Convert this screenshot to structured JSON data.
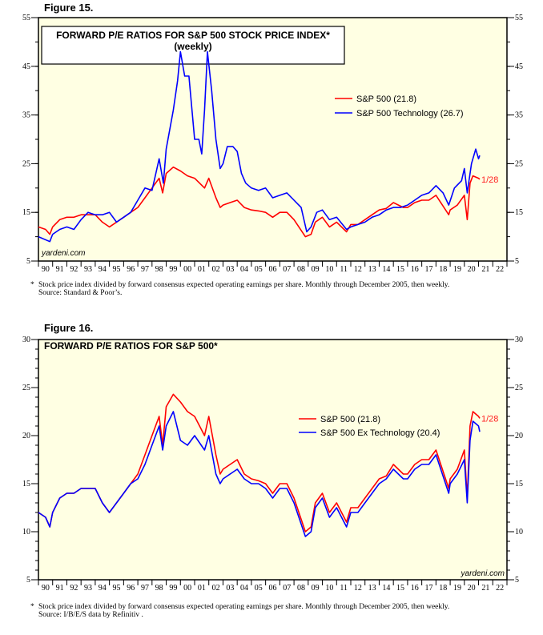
{
  "chart_data": [
    {
      "type": "line",
      "figure_label": "Figure 15.",
      "title": "FORWARD P/E RATIOS FOR S&P 500 STOCK PRICE INDEX*",
      "subtitle": "(weekly)",
      "ylim": [
        5,
        55
      ],
      "y_ticks": [
        5,
        15,
        25,
        35,
        45,
        55
      ],
      "y_minor_step": 5,
      "x_range": [
        1990,
        2023
      ],
      "x_tick_labels": [
        "90",
        "91",
        "92",
        "93",
        "94",
        "95",
        "96",
        "97",
        "98",
        "99",
        "00",
        "01",
        "02",
        "03",
        "04",
        "05",
        "06",
        "07",
        "08",
        "09",
        "10",
        "11",
        "12",
        "13",
        "14",
        "15",
        "16",
        "17",
        "18",
        "19",
        "20",
        "21",
        "22"
      ],
      "legend_placement": "top-right",
      "end_label": "1/28",
      "brand": "yardeni.com",
      "footnote": "Stock price index divided by forward consensus expected operating earnings per share. Monthly through December 2005, then weekly.",
      "source": "Source: Standard & Poor’s.",
      "series": [
        {
          "name": "S&P 500 (21.8)",
          "color": "#ff0000",
          "x": [
            1990.0,
            1990.5,
            1990.8,
            1991.0,
            1991.5,
            1992.0,
            1992.5,
            1993.0,
            1993.5,
            1994.0,
            1994.5,
            1995.0,
            1995.5,
            1996.0,
            1996.5,
            1997.0,
            1997.5,
            1998.0,
            1998.5,
            1998.75,
            1999.0,
            1999.5,
            2000.0,
            2000.5,
            2001.0,
            2001.7,
            2002.0,
            2002.5,
            2002.8,
            2003.0,
            2003.5,
            2004.0,
            2004.5,
            2005.0,
            2005.5,
            2006.0,
            2006.5,
            2007.0,
            2007.5,
            2008.0,
            2008.8,
            2009.2,
            2009.5,
            2010.0,
            2010.5,
            2011.0,
            2011.7,
            2012.0,
            2012.5,
            2013.0,
            2013.5,
            2014.0,
            2014.5,
            2015.0,
            2015.7,
            2016.0,
            2016.5,
            2017.0,
            2017.5,
            2018.0,
            2018.9,
            2019.0,
            2019.5,
            2020.0,
            2020.2,
            2020.4,
            2020.6,
            2021.0,
            2021.08
          ],
          "y": [
            12,
            11.5,
            10.5,
            12,
            13.5,
            14,
            14,
            14.5,
            14.5,
            14.5,
            13,
            12,
            13,
            14,
            15,
            16,
            18,
            20,
            22,
            19,
            23,
            24.3,
            23.5,
            22.5,
            22,
            20,
            22,
            18,
            16,
            16.5,
            17,
            17.5,
            16,
            15.5,
            15.3,
            15,
            14,
            15,
            15,
            13.5,
            10,
            10.5,
            13,
            14,
            12,
            13,
            11,
            12.5,
            12.5,
            13.5,
            14.5,
            15.5,
            15.8,
            17,
            16,
            16,
            17,
            17.5,
            17.5,
            18.5,
            14.5,
            15.5,
            16.5,
            18.5,
            13.5,
            21,
            22.5,
            22,
            21.8
          ]
        },
        {
          "name": "S&P 500 Technology (26.7)",
          "color": "#0000ff",
          "x": [
            1990.0,
            1990.8,
            1991.0,
            1991.5,
            1992.0,
            1992.5,
            1993.0,
            1993.5,
            1994.0,
            1994.5,
            1995.0,
            1995.5,
            1996.0,
            1996.5,
            1997.0,
            1997.5,
            1998.0,
            1998.5,
            1998.8,
            1999.0,
            1999.5,
            1999.8,
            2000.0,
            2000.3,
            2000.6,
            2001.0,
            2001.3,
            2001.5,
            2001.7,
            2001.9,
            2002.2,
            2002.5,
            2002.8,
            2003.0,
            2003.3,
            2003.7,
            2004.0,
            2004.3,
            2004.6,
            2005.0,
            2005.5,
            2006.0,
            2006.5,
            2007.0,
            2007.5,
            2008.0,
            2008.5,
            2008.9,
            2009.2,
            2009.6,
            2010.0,
            2010.5,
            2011.0,
            2011.7,
            2012.0,
            2012.5,
            2013.0,
            2013.5,
            2014.0,
            2014.5,
            2015.0,
            2015.5,
            2016.0,
            2016.5,
            2017.0,
            2017.5,
            2018.0,
            2018.5,
            2018.9,
            2019.3,
            2019.8,
            2020.0,
            2020.2,
            2020.5,
            2020.8,
            2021.0,
            2021.08
          ],
          "y": [
            10,
            9,
            10.5,
            11.5,
            12,
            11.5,
            13.5,
            15,
            14.5,
            14.5,
            15,
            13,
            14,
            15,
            17.5,
            20,
            19.5,
            26,
            21,
            28,
            36,
            42,
            48,
            43,
            43,
            30,
            30,
            27,
            36,
            48,
            40,
            30,
            24,
            25,
            28.5,
            28.5,
            27.5,
            23,
            21,
            20,
            19.5,
            20,
            18,
            18.5,
            19,
            17.5,
            16,
            11,
            12,
            15,
            15.5,
            13.5,
            14,
            11.5,
            12,
            12.5,
            13,
            14,
            14.5,
            15.5,
            16,
            16,
            16.5,
            17.5,
            18.5,
            19,
            20.5,
            19,
            16.5,
            20,
            21.5,
            24,
            19,
            25,
            28,
            26,
            26.7
          ]
        }
      ]
    },
    {
      "type": "line",
      "figure_label": "Figure 16.",
      "title": "FORWARD P/E RATIOS FOR S&P 500*",
      "ylim": [
        5,
        30
      ],
      "y_ticks": [
        5,
        10,
        15,
        20,
        25,
        30
      ],
      "y_minor_step": 1,
      "x_range": [
        1990,
        2023
      ],
      "x_tick_labels": [
        "90",
        "91",
        "92",
        "93",
        "94",
        "95",
        "96",
        "97",
        "98",
        "99",
        "00",
        "01",
        "02",
        "03",
        "04",
        "05",
        "06",
        "07",
        "08",
        "09",
        "10",
        "11",
        "12",
        "13",
        "14",
        "15",
        "16",
        "17",
        "18",
        "19",
        "20",
        "21",
        "22"
      ],
      "legend_placement": "center-right",
      "end_label": "1/28",
      "brand": "yardeni.com",
      "footnote": "Stock price index divided by forward consensus expected operating earnings per share. Monthly through December 2005, then weekly.",
      "source": "Source: I/B/E/S data by Refinitiv .",
      "series": [
        {
          "name": "S&P 500 (21.8)",
          "color": "#ff0000",
          "x": [
            1990.0,
            1990.5,
            1990.8,
            1991.0,
            1991.5,
            1992.0,
            1992.5,
            1993.0,
            1993.5,
            1994.0,
            1994.5,
            1995.0,
            1995.5,
            1996.0,
            1996.5,
            1997.0,
            1997.5,
            1998.0,
            1998.5,
            1998.75,
            1999.0,
            1999.5,
            2000.0,
            2000.5,
            2001.0,
            2001.7,
            2002.0,
            2002.5,
            2002.8,
            2003.0,
            2003.5,
            2004.0,
            2004.5,
            2005.0,
            2005.5,
            2006.0,
            2006.5,
            2007.0,
            2007.5,
            2008.0,
            2008.8,
            2009.2,
            2009.5,
            2010.0,
            2010.5,
            2011.0,
            2011.7,
            2012.0,
            2012.5,
            2013.0,
            2013.5,
            2014.0,
            2014.5,
            2015.0,
            2015.7,
            2016.0,
            2016.5,
            2017.0,
            2017.5,
            2018.0,
            2018.9,
            2019.0,
            2019.5,
            2020.0,
            2020.2,
            2020.4,
            2020.6,
            2021.0,
            2021.08
          ],
          "y": [
            12,
            11.5,
            10.5,
            12,
            13.5,
            14,
            14,
            14.5,
            14.5,
            14.5,
            13,
            12,
            13,
            14,
            15,
            16,
            18,
            20,
            22,
            19,
            23,
            24.3,
            23.5,
            22.5,
            22,
            20,
            22,
            18,
            16,
            16.5,
            17,
            17.5,
            16,
            15.5,
            15.3,
            15,
            14,
            15,
            15,
            13.5,
            10,
            10.5,
            13,
            14,
            12,
            13,
            11,
            12.5,
            12.5,
            13.5,
            14.5,
            15.5,
            15.8,
            17,
            16,
            16,
            17,
            17.5,
            17.5,
            18.5,
            14.5,
            15.5,
            16.5,
            18.5,
            13.5,
            21,
            22.5,
            22,
            21.8
          ]
        },
        {
          "name": "S&P 500 Ex Technology (20.4)",
          "color": "#0000ff",
          "x": [
            1990.0,
            1990.5,
            1990.8,
            1991.0,
            1991.5,
            1992.0,
            1992.5,
            1993.0,
            1993.5,
            1994.0,
            1994.5,
            1995.0,
            1995.5,
            1996.0,
            1996.5,
            1997.0,
            1997.5,
            1998.0,
            1998.5,
            1998.75,
            1999.0,
            1999.5,
            2000.0,
            2000.5,
            2001.0,
            2001.7,
            2002.0,
            2002.5,
            2002.8,
            2003.0,
            2003.5,
            2004.0,
            2004.5,
            2005.0,
            2005.5,
            2006.0,
            2006.5,
            2007.0,
            2007.5,
            2008.0,
            2008.8,
            2009.2,
            2009.5,
            2010.0,
            2010.5,
            2011.0,
            2011.7,
            2012.0,
            2012.5,
            2013.0,
            2013.5,
            2014.0,
            2014.5,
            2015.0,
            2015.7,
            2016.0,
            2016.5,
            2017.0,
            2017.5,
            2018.0,
            2018.9,
            2019.0,
            2019.5,
            2020.0,
            2020.2,
            2020.4,
            2020.6,
            2021.0,
            2021.08
          ],
          "y": [
            12,
            11.5,
            10.5,
            12,
            13.5,
            14,
            14,
            14.5,
            14.5,
            14.5,
            13,
            12,
            13,
            14,
            15,
            15.5,
            17,
            19,
            21,
            18.5,
            21,
            22.5,
            19.5,
            19,
            20,
            18.5,
            20,
            16,
            15,
            15.5,
            16,
            16.5,
            15.5,
            15,
            15,
            14.5,
            13.5,
            14.5,
            14.5,
            13,
            9.5,
            10,
            12.5,
            13.5,
            11.5,
            12.5,
            10.5,
            12,
            12,
            13,
            14,
            15,
            15.5,
            16.5,
            15.5,
            15.5,
            16.5,
            17,
            17,
            18,
            14,
            15,
            16,
            17.5,
            13,
            19.5,
            21.5,
            21,
            20.4
          ]
        }
      ]
    }
  ]
}
